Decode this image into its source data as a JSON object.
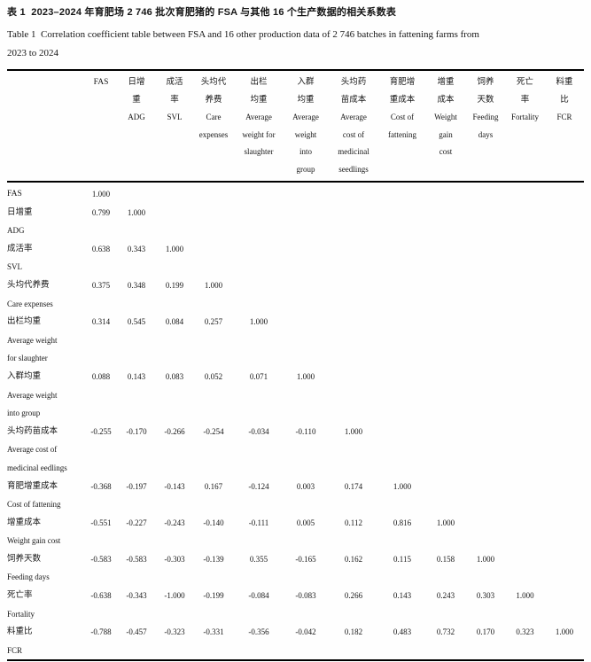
{
  "title": {
    "zh": "表 1  2023–2024 年育肥场 2 746 批次育肥猪的 FSA 与其他 16 个生产数据的相关系数表",
    "en": "Table 1  Correlation coefficient table between FSA and 16 other production data of 2 746 batches in fattening farms from\n2023 to 2024"
  },
  "table": {
    "headers": [
      {
        "zh": "FAS",
        "en": ""
      },
      {
        "zh": "日增\n重",
        "en": "ADG"
      },
      {
        "zh": "成活\n率",
        "en": "SVL"
      },
      {
        "zh": "头均代\n养费",
        "en": "Care\nexpenses"
      },
      {
        "zh": "出栏\n均重",
        "en": "Average\nweight for\nslaughter"
      },
      {
        "zh": "入群\n均重",
        "en": "Average\nweight\ninto\ngroup"
      },
      {
        "zh": "头均药\n苗成本",
        "en": "Average\ncost of\nmedicinal\nseedlings"
      },
      {
        "zh": "育肥增\n重成本",
        "en": "Cost of\nfattening"
      },
      {
        "zh": "增重\n成本",
        "en": "Weight\ngain\ncost"
      },
      {
        "zh": "饲养\n天数",
        "en": "Feeding\ndays"
      },
      {
        "zh": "死亡\n率",
        "en": "Fortality"
      },
      {
        "zh": "料重\n比",
        "en": "FCR"
      }
    ],
    "rows": [
      {
        "label_zh": "FAS",
        "label_en": "",
        "values": [
          "1.000"
        ]
      },
      {
        "label_zh": "日增重",
        "label_en": "ADG",
        "values": [
          "0.799",
          "1.000"
        ]
      },
      {
        "label_zh": "成活率",
        "label_en": "SVL",
        "values": [
          "0.638",
          "0.343",
          "1.000"
        ]
      },
      {
        "label_zh": "头均代养费",
        "label_en": "Care expenses",
        "values": [
          "0.375",
          "0.348",
          "0.199",
          "1.000"
        ]
      },
      {
        "label_zh": "出栏均重",
        "label_en": "Average weight\nfor slaughter",
        "values": [
          "0.314",
          "0.545",
          "0.084",
          "0.257",
          "1.000"
        ]
      },
      {
        "label_zh": "入群均重",
        "label_en": "Average weight\ninto group",
        "values": [
          "0.088",
          "0.143",
          "0.083",
          "0.052",
          "0.071",
          "1.000"
        ]
      },
      {
        "label_zh": "头均药苗成本",
        "label_en": "Average cost of\nmedicinal eedlings",
        "values": [
          "-0.255",
          "-0.170",
          "-0.266",
          "-0.254",
          "-0.034",
          "-0.110",
          "1.000"
        ]
      },
      {
        "label_zh": "育肥增重成本",
        "label_en": "Cost of fattening",
        "values": [
          "-0.368",
          "-0.197",
          "-0.143",
          "0.167",
          "-0.124",
          "0.003",
          "0.174",
          "1.000"
        ]
      },
      {
        "label_zh": "增重成本",
        "label_en": "Weight gain cost",
        "values": [
          "-0.551",
          "-0.227",
          "-0.243",
          "-0.140",
          "-0.111",
          "0.005",
          "0.112",
          "0.816",
          "1.000"
        ]
      },
      {
        "label_zh": "饲养天数",
        "label_en": "Feeding days",
        "values": [
          "-0.583",
          "-0.583",
          "-0.303",
          "-0.139",
          "0.355",
          "-0.165",
          "0.162",
          "0.115",
          "0.158",
          "1.000"
        ]
      },
      {
        "label_zh": "死亡率",
        "label_en": "Fortality",
        "values": [
          "-0.638",
          "-0.343",
          "-1.000",
          "-0.199",
          "-0.084",
          "-0.083",
          "0.266",
          "0.143",
          "0.243",
          "0.303",
          "1.000"
        ]
      },
      {
        "label_zh": "料重比",
        "label_en": "FCR",
        "values": [
          "-0.788",
          "-0.457",
          "-0.323",
          "-0.331",
          "-0.356",
          "-0.042",
          "0.182",
          "0.483",
          "0.732",
          "0.170",
          "0.323",
          "1.000"
        ]
      }
    ]
  }
}
